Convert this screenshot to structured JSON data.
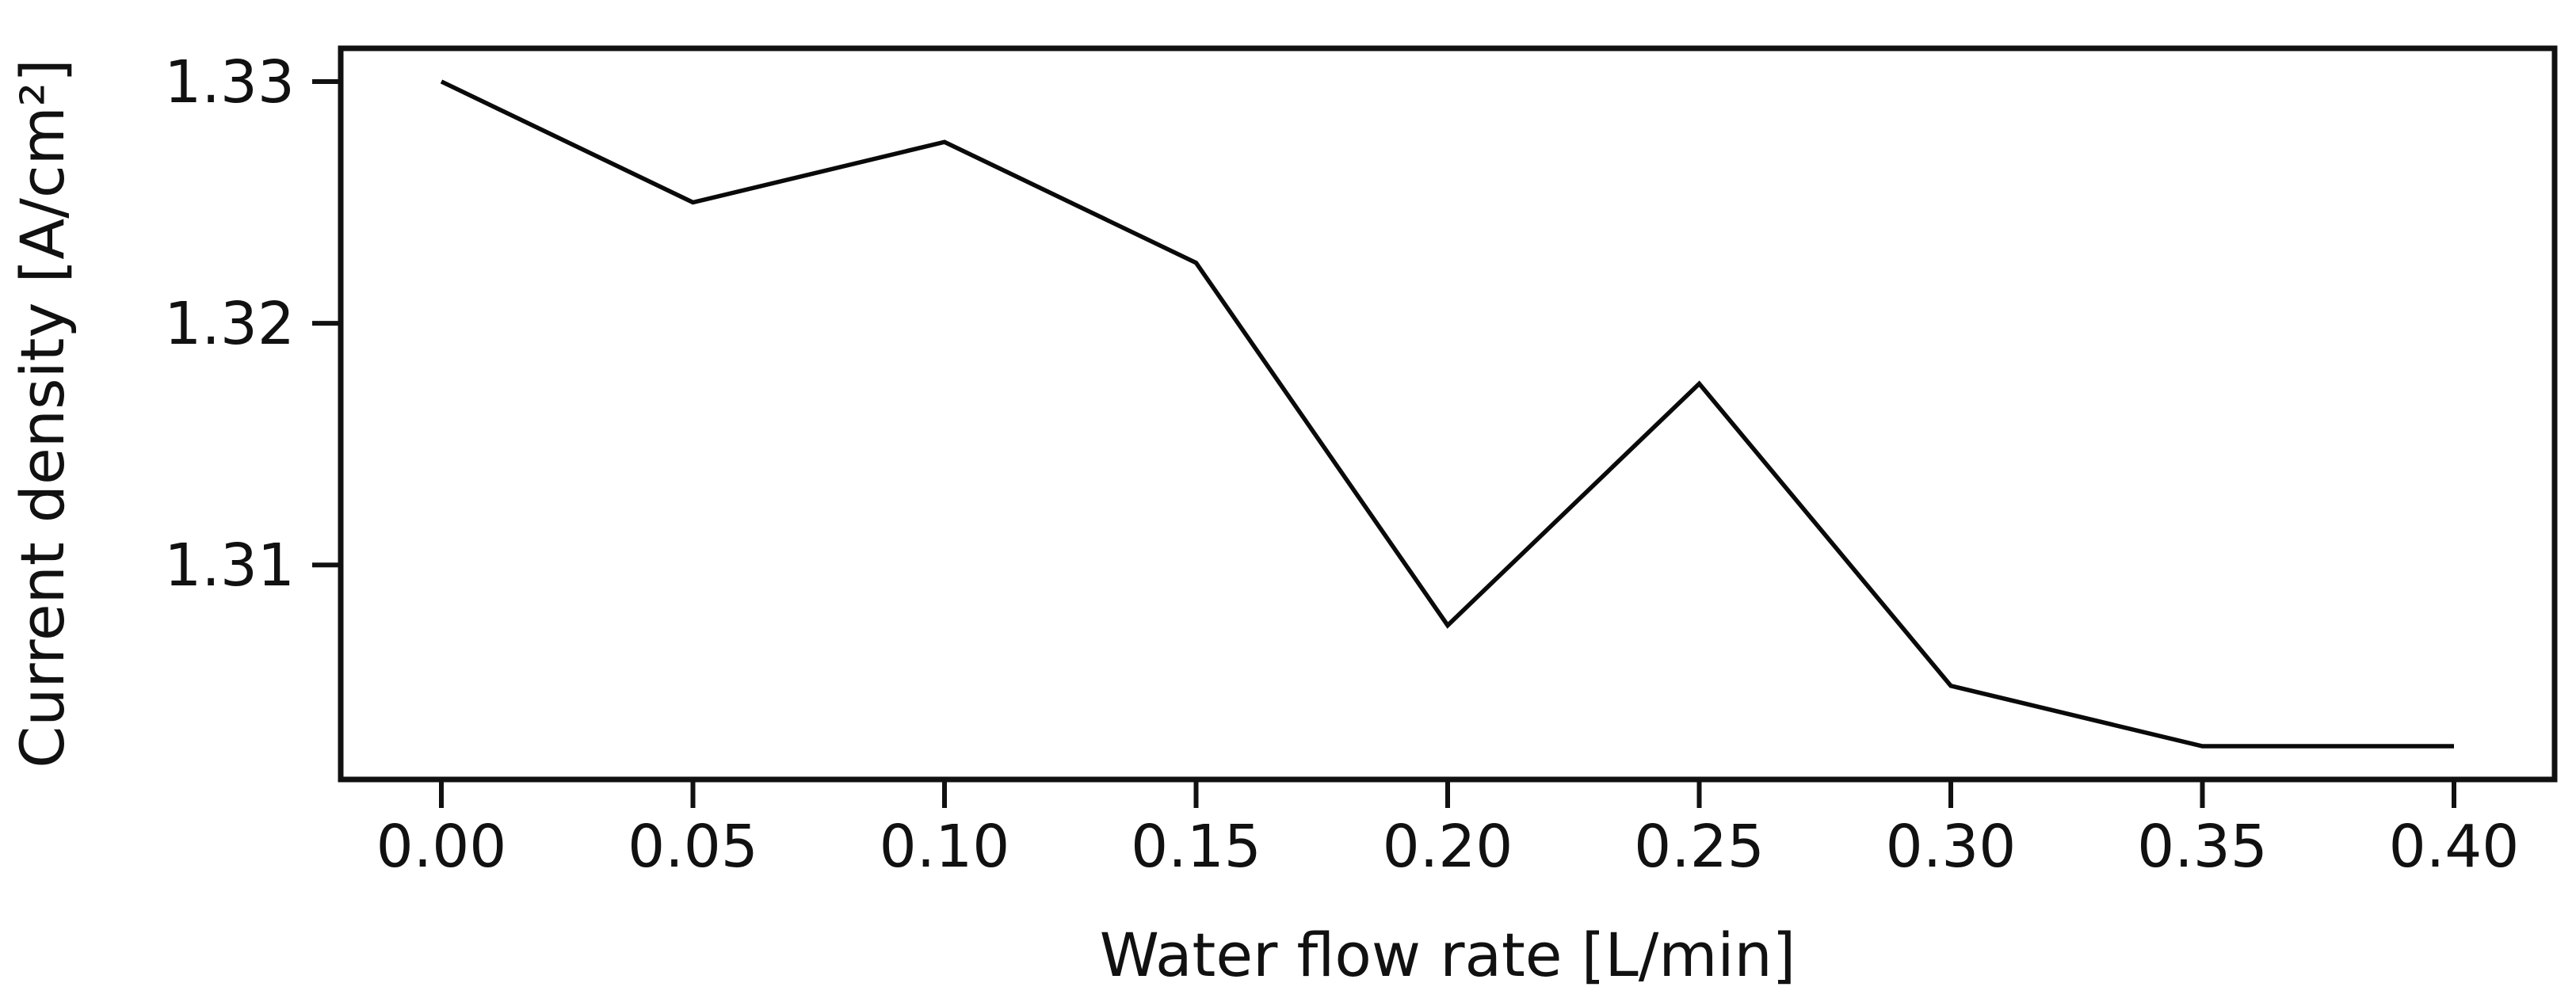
{
  "chart_data": {
    "type": "line",
    "title": "",
    "xlabel": "Water flow rate [L/min]",
    "ylabel": "Current density [A/cm²]",
    "x": [
      0.0,
      0.05,
      0.1,
      0.15,
      0.2,
      0.25,
      0.3,
      0.35,
      0.4
    ],
    "values": [
      1.33,
      1.325,
      1.3275,
      1.3225,
      1.3075,
      1.3175,
      1.305,
      1.3025,
      1.3025
    ],
    "x_tick_labels": [
      "0.00",
      "0.05",
      "0.10",
      "0.15",
      "0.20",
      "0.25",
      "0.30",
      "0.35",
      "0.40"
    ],
    "x_tick_values": [
      0.0,
      0.05,
      0.1,
      0.15,
      0.2,
      0.25,
      0.3,
      0.35,
      0.4
    ],
    "y_tick_labels": [
      "1.31",
      "1.32",
      "1.33"
    ],
    "y_tick_values": [
      1.31,
      1.32,
      1.33
    ],
    "xlim": [
      -0.02,
      0.42
    ],
    "ylim": [
      1.301125,
      1.331375
    ],
    "grid": "off",
    "legend": "none",
    "line_color": "#0a0a0a",
    "axis_color": "#111111",
    "background": "#ffffff"
  }
}
